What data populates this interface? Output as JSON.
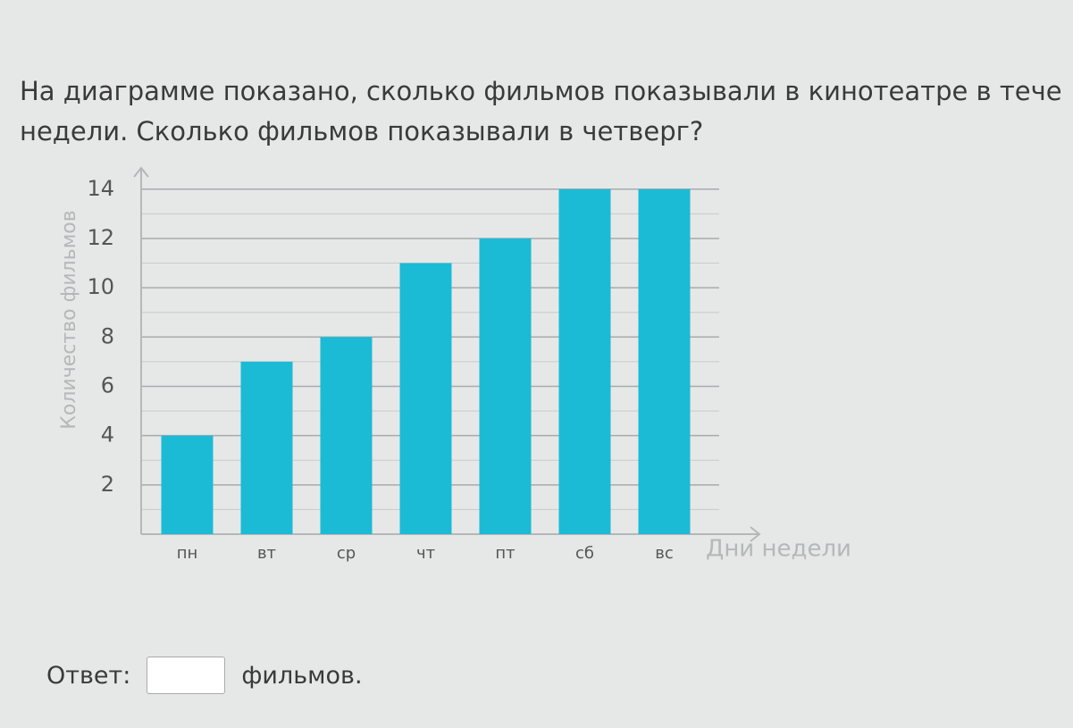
{
  "question": {
    "lines": [
      "На диаграмме показано, сколько фильмов показывали в кинотеатре в тече",
      "недели. Сколько фильмов показывали в четверг?"
    ]
  },
  "chart_data": {
    "type": "bar",
    "y_label": "Количество фильмов",
    "x_label": "Дни недели",
    "categories": [
      "пн",
      "вт",
      "ср",
      "чт",
      "пт",
      "сб",
      "вс"
    ],
    "values": [
      4,
      7,
      8,
      11,
      12,
      14,
      14
    ],
    "color": "#1bbbd6",
    "ylim": [
      0,
      14.5
    ],
    "yticks": [
      2,
      4,
      6,
      8,
      10,
      12,
      14
    ],
    "minor_yticks": [
      1,
      3,
      5,
      7,
      9,
      11,
      13
    ],
    "grid": true
  },
  "answer": {
    "label": "Ответ:",
    "unit": "фильмов."
  }
}
